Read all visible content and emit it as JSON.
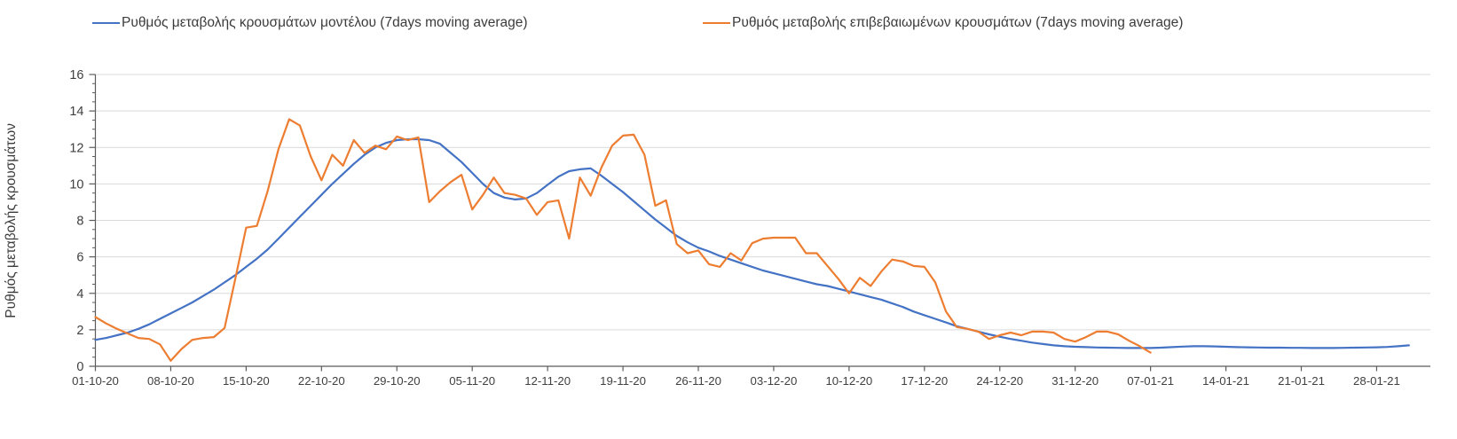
{
  "y_axis_title": "Ρυθμός μεταβολής κρουσμάτων",
  "legend": [
    {
      "label": "Ρυθμός μεταβολής κρουσμάτων μοντέλου (7days moving average)",
      "color": "#4472C4"
    },
    {
      "label": "Ρυθμός μεταβολής επιβεβαιωμένων κρουσμάτων (7days moving average)",
      "color": "#ED7D31"
    }
  ],
  "colors": {
    "model_line": "#4472C4",
    "confirmed_line": "#ED7D31",
    "gridline": "#D9D9D9",
    "axis": "#5B5B5B",
    "text": "#404040"
  },
  "chart_data": {
    "type": "line",
    "title": "",
    "xlabel": "",
    "ylabel": "Ρυθμός μεταβολής κρουσμάτων",
    "ylim": [
      0,
      16
    ],
    "y_ticks": [
      0,
      2,
      4,
      6,
      8,
      10,
      12,
      14,
      16
    ],
    "y_minor_tick_step": 0.5,
    "grid": "horizontal",
    "legend_position": "top",
    "x_start_date": "01-10-20",
    "x_frequency": "daily",
    "x_tick_interval_days": 7,
    "x_tick_labels": [
      "01-10-20",
      "08-10-20",
      "15-10-20",
      "22-10-20",
      "29-10-20",
      "05-11-20",
      "12-11-20",
      "19-11-20",
      "26-11-20",
      "03-12-20",
      "10-12-20",
      "17-12-20",
      "24-12-20",
      "31-12-20",
      "07-01-21",
      "14-01-21",
      "21-01-21",
      "28-01-21"
    ],
    "series": [
      {
        "name": "Ρυθμός μεταβολής κρουσμάτων μοντέλου (7days moving average)",
        "color": "#4472C4",
        "start_day": 0,
        "values": [
          1.45,
          1.55,
          1.7,
          1.85,
          2.05,
          2.3,
          2.6,
          2.9,
          3.2,
          3.5,
          3.85,
          4.2,
          4.6,
          5.0,
          5.45,
          5.9,
          6.4,
          7.0,
          7.6,
          8.2,
          8.8,
          9.4,
          10.0,
          10.55,
          11.1,
          11.6,
          12.0,
          12.25,
          12.4,
          12.45,
          12.45,
          12.4,
          12.2,
          11.7,
          11.2,
          10.6,
          10.0,
          9.5,
          9.25,
          9.15,
          9.2,
          9.5,
          9.95,
          10.4,
          10.7,
          10.8,
          10.85,
          10.45,
          10.0,
          9.55,
          9.05,
          8.55,
          8.05,
          7.6,
          7.15,
          6.8,
          6.5,
          6.3,
          6.05,
          5.85,
          5.65,
          5.45,
          5.25,
          5.1,
          4.95,
          4.8,
          4.65,
          4.5,
          4.4,
          4.25,
          4.1,
          3.95,
          3.8,
          3.65,
          3.45,
          3.25,
          3.0,
          2.8,
          2.6,
          2.4,
          2.2,
          2.05,
          1.9,
          1.75,
          1.62,
          1.5,
          1.4,
          1.3,
          1.22,
          1.15,
          1.1,
          1.07,
          1.05,
          1.03,
          1.02,
          1.01,
          1.0,
          1.0,
          1.0,
          1.02,
          1.05,
          1.08,
          1.1,
          1.1,
          1.09,
          1.07,
          1.05,
          1.04,
          1.03,
          1.02,
          1.02,
          1.01,
          1.01,
          1.0,
          1.0,
          1.0,
          1.01,
          1.02,
          1.03,
          1.04,
          1.06,
          1.1,
          1.15
        ]
      },
      {
        "name": "Ρυθμός μεταβολής επιβεβαιωμένων κρουσμάτων (7days moving average)",
        "color": "#ED7D31",
        "start_day": 0,
        "values": [
          2.7,
          2.35,
          2.05,
          1.8,
          1.55,
          1.5,
          1.2,
          0.3,
          0.95,
          1.45,
          1.55,
          1.6,
          2.1,
          4.8,
          7.6,
          7.7,
          9.6,
          11.9,
          13.55,
          13.2,
          11.5,
          10.2,
          11.6,
          11.0,
          12.4,
          11.7,
          12.1,
          11.9,
          12.6,
          12.4,
          12.55,
          9.0,
          9.6,
          10.1,
          10.5,
          8.6,
          9.4,
          10.35,
          9.5,
          9.4,
          9.2,
          8.3,
          9.0,
          9.1,
          7.0,
          10.35,
          9.35,
          10.9,
          12.1,
          12.65,
          12.7,
          11.6,
          8.8,
          9.1,
          6.7,
          6.2,
          6.35,
          5.6,
          5.45,
          6.2,
          5.8,
          6.75,
          7.0,
          7.05,
          7.05,
          7.05,
          6.2,
          6.2,
          5.5,
          4.8,
          4.0,
          4.85,
          4.4,
          5.2,
          5.85,
          5.75,
          5.5,
          5.45,
          4.6,
          3.0,
          2.15,
          2.05,
          1.9,
          1.5,
          1.7,
          1.85,
          1.7,
          1.9,
          1.9,
          1.85,
          1.5,
          1.35,
          1.6,
          1.9,
          1.9,
          1.75,
          1.4,
          1.1,
          0.75
        ]
      }
    ]
  }
}
